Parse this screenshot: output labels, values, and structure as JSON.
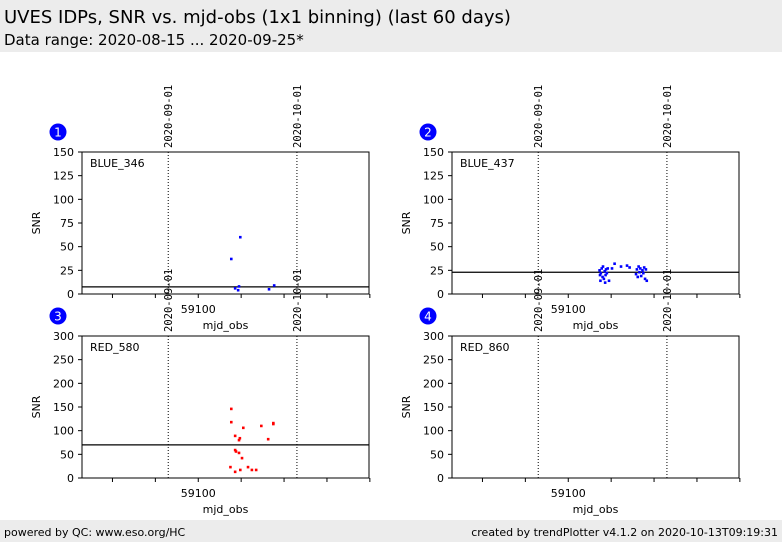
{
  "header": {
    "title": "UVES IDPs, SNR vs. mjd-obs (1x1 binning) (last 60 days)",
    "subtitle": "Data range: 2020-08-15 ... 2020-09-25*"
  },
  "footer": {
    "left": "powered by QC: www.eso.org/HC",
    "right": "created by trendPlotter v4.1.2 on 2020-10-13T09:19:31"
  },
  "chart_data": [
    {
      "type": "scatter",
      "panel": "1",
      "label": "BLUE_346",
      "color": "#0000ff",
      "xlabel": "mjd_obs",
      "ylabel": "SNR",
      "xlim": [
        59072.9,
        59139.8
      ],
      "ylim": [
        0,
        150
      ],
      "yticks": [
        0,
        25,
        50,
        75,
        100,
        125,
        150
      ],
      "xtick_labels": [
        "59100"
      ],
      "date_markers": [
        {
          "mjd": 59093,
          "label": "2020-09-01"
        },
        {
          "mjd": 59123,
          "label": "2020-10-01"
        }
      ],
      "reference": 7.5,
      "x": [
        59109.8,
        59107.7,
        59108.6,
        59109.3,
        59109.5,
        59116.5,
        59117.7
      ],
      "y": [
        60,
        37,
        6,
        4,
        8,
        5,
        9
      ]
    },
    {
      "type": "scatter",
      "panel": "2",
      "label": "BLUE_437",
      "color": "#0000ff",
      "xlabel": "mjd_obs",
      "ylabel": "SNR",
      "xlim": [
        59072.9,
        59139.8
      ],
      "ylim": [
        0,
        150
      ],
      "yticks": [
        0,
        25,
        50,
        75,
        100,
        125,
        150
      ],
      "xtick_labels": [
        "59100"
      ],
      "date_markers": [
        {
          "mjd": 59093,
          "label": "2020-09-01"
        },
        {
          "mjd": 59123,
          "label": "2020-10-01"
        }
      ],
      "reference": 23,
      "x": [
        59107.3,
        59107.4,
        59107.5,
        59107.6,
        59107.8,
        59108.0,
        59108.1,
        59108.3,
        59108.5,
        59108.6,
        59108.7,
        59108.8,
        59109.0,
        59109.2,
        59109.5,
        59110.2,
        59110.8,
        59112.3,
        59113.7,
        59114.3,
        59115.8,
        59116.0,
        59116.2,
        59116.4,
        59116.6,
        59116.8,
        59117.0,
        59117.3,
        59117.5,
        59117.7,
        59117.9,
        59118.1,
        59118.3
      ],
      "y": [
        25,
        20,
        14,
        22,
        27,
        18,
        29,
        16,
        24,
        12,
        20,
        26,
        22,
        27,
        14,
        27,
        32,
        29,
        30,
        28,
        21,
        26,
        18,
        29,
        23,
        27,
        19,
        25,
        22,
        28,
        16,
        26,
        14
      ]
    },
    {
      "type": "scatter",
      "panel": "3",
      "label": "RED_580",
      "color": "#ff0000",
      "xlabel": "mjd_obs",
      "ylabel": "SNR",
      "xlim": [
        59072.9,
        59139.8
      ],
      "ylim": [
        0,
        300
      ],
      "yticks": [
        0,
        50,
        100,
        150,
        200,
        250,
        300
      ],
      "xtick_labels": [
        "59100"
      ],
      "date_markers": [
        {
          "mjd": 59093,
          "label": "2020-09-01"
        },
        {
          "mjd": 59123,
          "label": "2020-10-01"
        }
      ],
      "reference": 70,
      "x": [
        59107.7,
        59107.7,
        59108.6,
        59110.5,
        59114.7,
        59117.5,
        59117.5,
        59108.6,
        59108.8,
        59109.5,
        59109.5,
        59110.2,
        59107.5,
        59108.6,
        59109.8,
        59111.6,
        59112.5,
        59113.5,
        59116.3,
        59109.7
      ],
      "y": [
        146,
        118,
        89,
        106,
        110,
        116,
        114,
        59,
        56,
        53,
        80,
        42,
        23,
        13,
        17,
        23,
        17,
        17,
        82,
        84
      ]
    },
    {
      "type": "scatter",
      "panel": "4",
      "label": "RED_860",
      "color": "#ff0000",
      "xlabel": "mjd_obs",
      "ylabel": "SNR",
      "xlim": [
        59072.9,
        59139.8
      ],
      "ylim": [
        0,
        300
      ],
      "yticks": [
        0,
        50,
        100,
        150,
        200,
        250,
        300
      ],
      "xtick_labels": [
        "59100"
      ],
      "date_markers": [
        {
          "mjd": 59093,
          "label": "2020-09-01"
        },
        {
          "mjd": 59123,
          "label": "2020-10-01"
        }
      ],
      "reference": null,
      "x": [],
      "y": []
    }
  ]
}
